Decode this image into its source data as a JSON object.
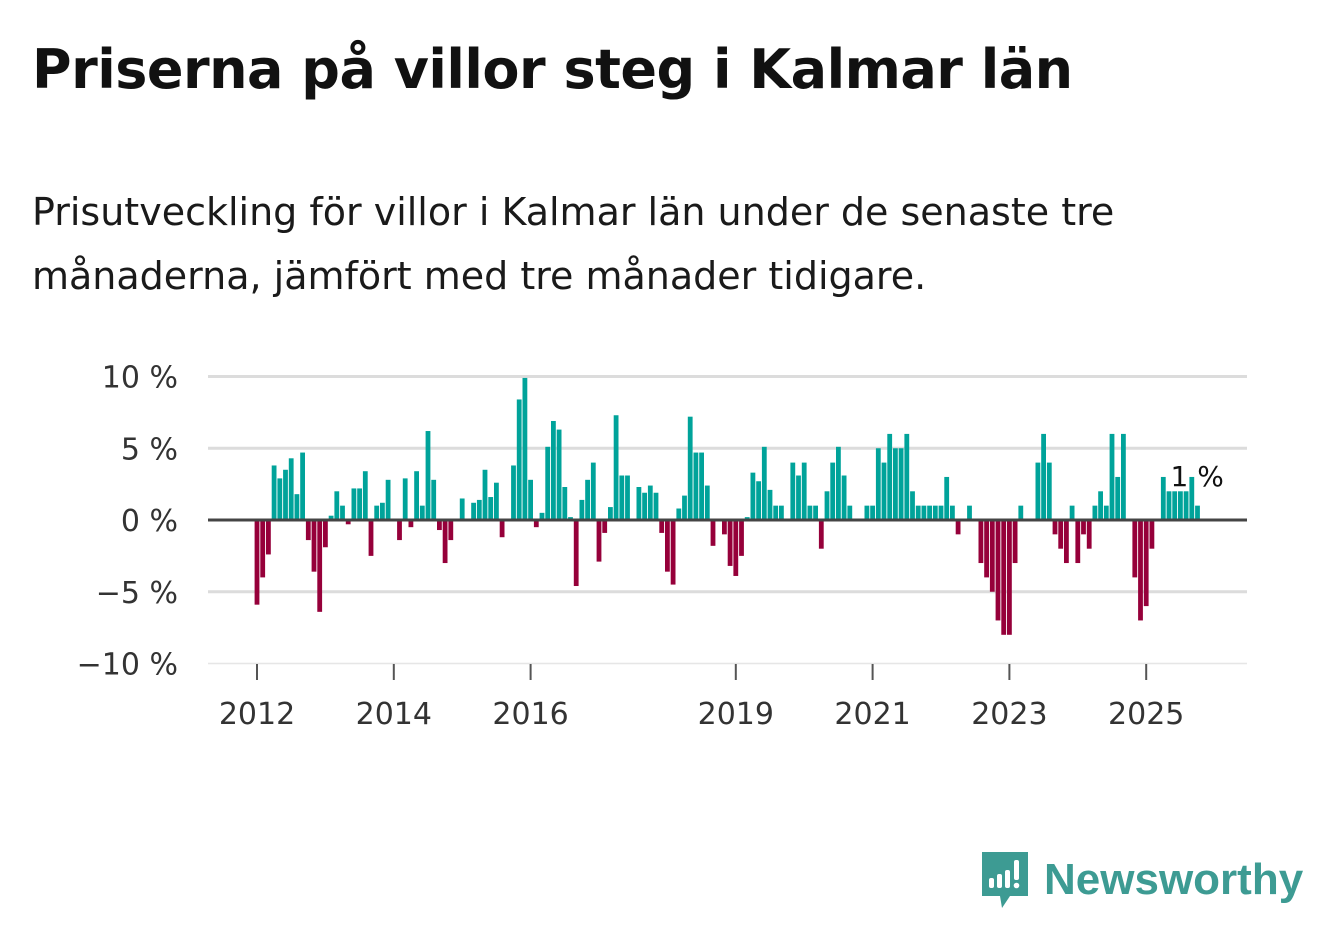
{
  "chart_data": {
    "type": "bar",
    "title": "Priserna på villor steg i Kalmar län",
    "subtitle": "Prisutveckling för villor i Kalmar län under de senaste tre månaderna, jämfört med tre månader tidigare.",
    "xlabel": "",
    "ylabel": "",
    "unit": "%",
    "ylim": [
      -10,
      10
    ],
    "yticks": [
      10,
      5,
      0,
      -5,
      -10
    ],
    "ytick_labels": [
      "10 %",
      "5 %",
      "0 %",
      "−5 %",
      "−10 %"
    ],
    "xtick_labels": [
      "2012",
      "2014",
      "2016",
      "2019",
      "2021",
      "2023",
      "2025"
    ],
    "xtick_month_index": [
      0,
      24,
      48,
      84,
      108,
      132,
      156
    ],
    "start": "2012-01",
    "frequency": "monthly",
    "grid": true,
    "positive_color": "#00a39a",
    "negative_color": "#96003a",
    "last_value_label": "1 %",
    "values": [
      -5.9,
      -4.0,
      -2.4,
      3.8,
      2.9,
      3.5,
      4.3,
      1.8,
      4.7,
      -1.4,
      -3.6,
      -6.4,
      -1.9,
      0.3,
      2.0,
      1.0,
      -0.3,
      2.2,
      2.2,
      3.4,
      -2.5,
      1.0,
      1.2,
      2.8,
      0,
      -1.4,
      2.9,
      -0.5,
      3.4,
      1.0,
      6.2,
      2.8,
      -0.7,
      -3.0,
      -1.4,
      0,
      1.5,
      0,
      1.2,
      1.4,
      3.5,
      1.6,
      2.6,
      -1.2,
      0,
      3.8,
      8.4,
      9.9,
      2.8,
      -0.5,
      0.5,
      5.1,
      6.9,
      6.3,
      2.3,
      0.2,
      -4.6,
      1.4,
      2.8,
      4.0,
      -2.9,
      -0.9,
      0.9,
      7.3,
      3.1,
      3.1,
      0,
      2.3,
      1.9,
      2.4,
      1.9,
      -0.9,
      -3.6,
      -4.5,
      0.8,
      1.7,
      7.2,
      4.7,
      4.7,
      2.4,
      -1.8,
      0,
      -1.0,
      -3.2,
      -3.9,
      -2.5,
      0.2,
      3.3,
      2.7,
      5.1,
      2.1,
      1.0,
      1.0,
      0,
      4.0,
      3.1,
      4.0,
      1.0,
      1.0,
      -2.0,
      2.0,
      4.0,
      5.1,
      3.1,
      1.0,
      0,
      0,
      1.0,
      1.0,
      5,
      4,
      6,
      5,
      5,
      6,
      2,
      1,
      1,
      1,
      1,
      1,
      3,
      1,
      -1,
      0,
      1,
      0,
      -3,
      -4,
      -5,
      -7,
      -8,
      -8,
      -3,
      1,
      0,
      0,
      4,
      6,
      4,
      -1,
      -2,
      -3,
      1,
      -3,
      -1,
      -2,
      1,
      2,
      1,
      6,
      3,
      6,
      0,
      -4,
      -7,
      -6,
      -2,
      0,
      3,
      2,
      2,
      2,
      2,
      3,
      1
    ]
  },
  "branding": {
    "logo_text": "Newsworthy"
  }
}
